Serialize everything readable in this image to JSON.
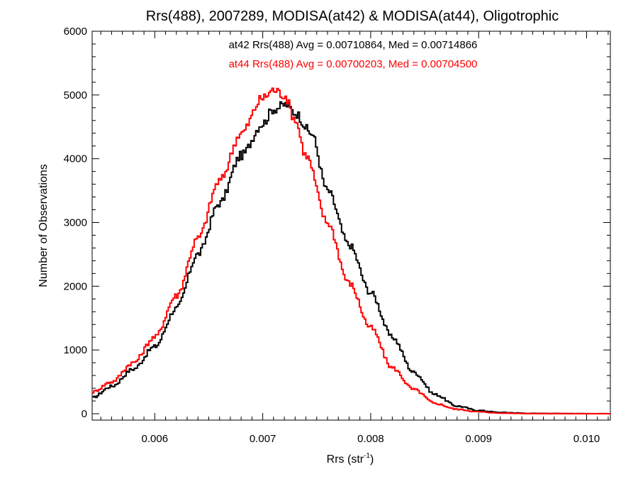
{
  "chart_data": {
    "type": "line",
    "step": true,
    "title": "Rrs(488), 2007289, MODISA(at42) & MODISA(at44), Oligotrophic",
    "xlabel": {
      "text": "Rrs (str",
      "sup": "-1",
      "tail": ")"
    },
    "ylabel": "Number of Observations",
    "xlim": [
      0.00542,
      0.01022
    ],
    "ylim": [
      -100,
      6000
    ],
    "xticks": [
      0.006,
      0.007,
      0.008,
      0.009,
      0.01
    ],
    "xtick_labels": [
      "0.006",
      "0.007",
      "0.008",
      "0.009",
      "0.010"
    ],
    "yticks": [
      0,
      1000,
      2000,
      3000,
      4000,
      5000,
      6000
    ],
    "ytick_labels": [
      "0",
      "1000",
      "2000",
      "3000",
      "4000",
      "5000",
      "6000"
    ],
    "annotations": [
      {
        "text": "at42 Rrs(488) Avg = 0.00710864, Med = 0.00714866",
        "color": "#000000"
      },
      {
        "text": "at44 Rrs(488) Avg = 0.00700203, Med = 0.00704500",
        "color": "#ff0000"
      }
    ],
    "series": [
      {
        "color": "#000000",
        "x": [
          0.00542,
          0.0056,
          0.0058,
          0.006,
          0.0062,
          0.0064,
          0.0066,
          0.0068,
          0.007,
          0.0071,
          0.00722,
          0.0073,
          0.00745,
          0.0076,
          0.0078,
          0.008,
          0.0082,
          0.0084,
          0.0086,
          0.0088,
          0.009,
          0.0092,
          0.0095,
          0.01022
        ],
        "y": [
          250,
          430,
          700,
          1050,
          1650,
          2500,
          3300,
          4050,
          4550,
          4780,
          4850,
          4720,
          4400,
          3500,
          2650,
          1900,
          1200,
          650,
          300,
          120,
          50,
          20,
          5,
          0
        ]
      },
      {
        "color": "#ff0000",
        "x": [
          0.00542,
          0.0056,
          0.0058,
          0.006,
          0.0062,
          0.0064,
          0.0066,
          0.0068,
          0.007,
          0.0071,
          0.0072,
          0.0073,
          0.0074,
          0.0076,
          0.0078,
          0.008,
          0.0082,
          0.0084,
          0.0086,
          0.0088,
          0.009,
          0.0092,
          0.0095,
          0.01022
        ],
        "y": [
          340,
          500,
          800,
          1200,
          1850,
          2750,
          3650,
          4400,
          4950,
          5080,
          5000,
          4620,
          4050,
          3000,
          2050,
          1350,
          720,
          380,
          160,
          70,
          30,
          10,
          3,
          0
        ]
      }
    ]
  }
}
